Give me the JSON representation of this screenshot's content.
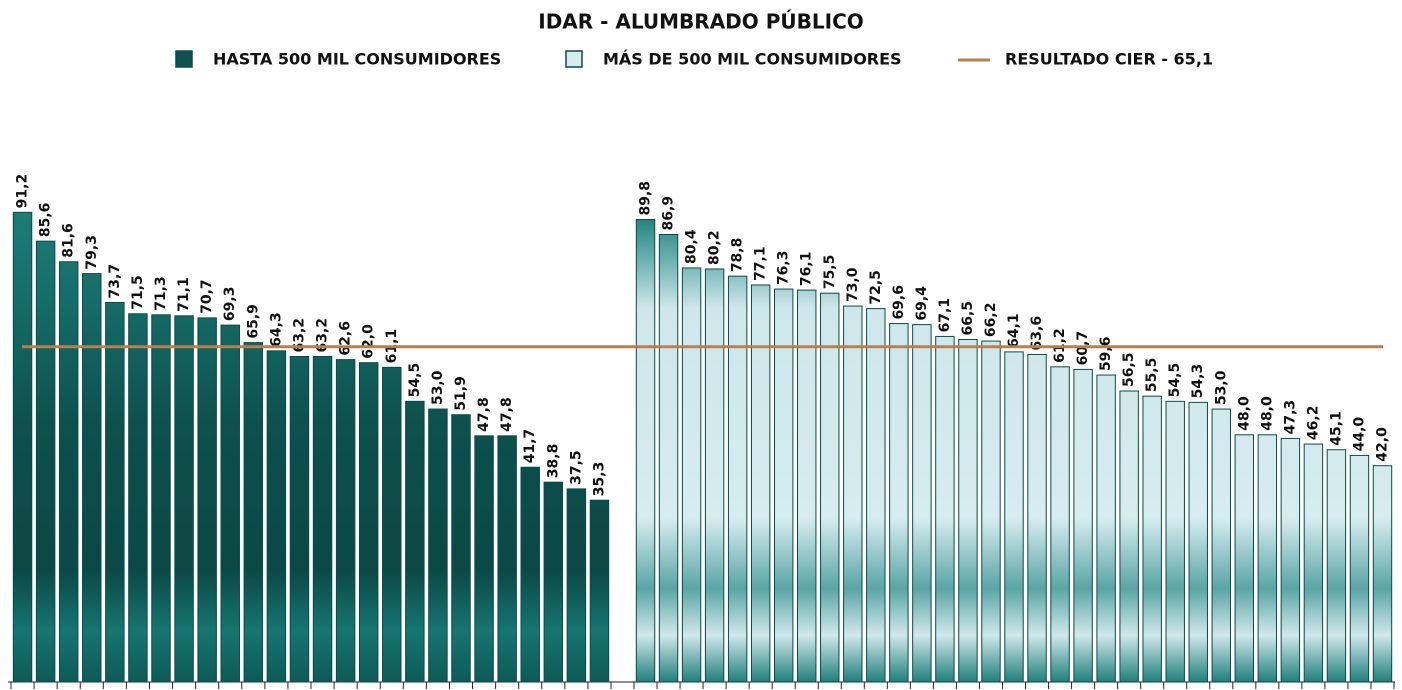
{
  "chart_data": {
    "type": "bar",
    "title": "IDAR - ALUMBRADO PÚBLICO",
    "ylim": [
      0,
      100
    ],
    "series": [
      {
        "name": "HASTA 500 MIL CONSUMIDORES",
        "color": "#0d504d",
        "values": [
          91.2,
          85.6,
          81.6,
          79.3,
          73.7,
          71.5,
          71.3,
          71.1,
          70.7,
          69.3,
          65.9,
          64.3,
          63.2,
          63.2,
          62.6,
          62.0,
          61.1,
          54.5,
          53.0,
          51.9,
          47.8,
          47.8,
          41.7,
          38.8,
          37.5,
          35.3
        ],
        "value_labels": [
          "91,2",
          "85,6",
          "81,6",
          "79,3",
          "73,7",
          "71,5",
          "71,3",
          "71,1",
          "70,7",
          "69,3",
          "65,9",
          "64,3",
          "63,2",
          "63,2",
          "62,6",
          "62,0",
          "61,1",
          "54,5",
          "53,0",
          "51,9",
          "47,8",
          "47,8",
          "41,7",
          "38,8",
          "37,5",
          "35,3"
        ]
      },
      {
        "name": "MÁS DE 500 MIL CONSUMIDORES",
        "color": "#d6ecef",
        "values": [
          89.8,
          86.9,
          80.4,
          80.2,
          78.8,
          77.1,
          76.3,
          76.1,
          75.5,
          73.0,
          72.5,
          69.6,
          69.4,
          67.1,
          66.5,
          66.2,
          64.1,
          63.6,
          61.2,
          60.7,
          59.6,
          56.5,
          55.5,
          54.5,
          54.3,
          53.0,
          48.0,
          48.0,
          47.3,
          46.2,
          45.1,
          44.0,
          42.0
        ],
        "value_labels": [
          "89,8",
          "86,9",
          "80,4",
          "80,2",
          "78,8",
          "77,1",
          "76,3",
          "76,1",
          "75,5",
          "73,0",
          "72,5",
          "69,6",
          "69,4",
          "67,1",
          "66,5",
          "66,2",
          "64,1",
          "63,6",
          "61,2",
          "60,7",
          "59,6",
          "56,5",
          "55,5",
          "54,5",
          "54,3",
          "53,0",
          "48,0",
          "48,0",
          "47,3",
          "46,2",
          "45,1",
          "44,0",
          "42,0"
        ]
      }
    ],
    "reference_line": {
      "name": "RESULTADO CIER - 65,1",
      "value": 65.1,
      "color": "#b8804e"
    }
  }
}
